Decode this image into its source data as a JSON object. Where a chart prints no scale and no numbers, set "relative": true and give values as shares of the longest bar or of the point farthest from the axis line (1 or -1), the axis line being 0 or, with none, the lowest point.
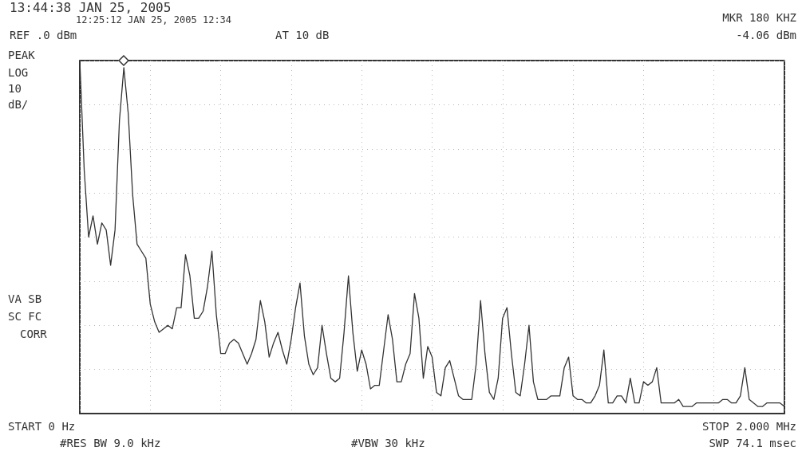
{
  "chart_data": {
    "type": "line",
    "title": "13:44:38 JAN 25, 2005",
    "annotations": [
      "12:25:12 JAN 25, 2005 12:34",
      "REF .0 dBm",
      "AT 10 dB",
      "MKR 180 KHZ",
      "-4.06 dBm",
      "PEAK",
      "LOG",
      "10",
      "dB/",
      "VA SB",
      "SC FC",
      "CORR",
      "START 0 Hz",
      "STOP 2.000 MHz",
      "#RES BW 9.0 kHz",
      "#VBW 30 kHz",
      "SWP 74.1 msec"
    ],
    "categories": [
      null,
      null,
      null,
      null,
      null,
      null,
      null,
      null,
      null,
      null,
      null,
      null,
      null,
      null,
      null,
      null,
      null,
      null,
      null,
      null,
      null,
      null,
      null,
      null,
      null,
      null,
      null,
      null,
      null,
      null,
      null,
      null,
      null,
      null,
      null,
      null,
      null,
      null,
      null,
      null,
      null,
      null,
      null,
      null,
      null,
      null,
      null,
      null,
      null,
      null,
      null,
      null,
      null,
      null,
      null,
      null,
      null,
      null,
      null,
      null,
      null,
      null,
      null,
      null,
      null,
      null,
      null,
      null,
      null,
      null,
      null,
      null,
      null,
      null,
      null,
      null,
      null,
      null,
      null,
      null,
      null,
      null,
      null,
      null,
      null,
      null,
      null,
      null,
      null,
      null,
      null,
      null,
      null,
      null,
      null,
      null,
      null,
      null,
      null,
      null,
      null,
      null,
      null,
      null,
      null,
      null,
      null,
      null,
      null,
      null,
      null,
      null,
      null,
      null,
      null,
      null,
      null,
      null,
      null,
      null,
      null,
      null,
      null,
      null,
      null,
      null,
      null,
      null,
      null,
      null,
      null,
      null,
      null,
      null,
      null,
      null,
      null,
      null,
      null,
      null,
      null,
      null,
      null,
      null,
      null,
      null,
      null,
      null,
      null,
      null,
      null,
      null,
      null,
      null,
      null,
      null,
      null,
      null,
      null,
      null,
      null
    ],
    "series": [
      {
        "color": "#333333",
        "values": [
          1,
          0.69,
          0.5,
          0.56,
          0.48,
          0.54,
          0.52,
          0.42,
          0.52,
          0.83,
          0.98,
          0.85,
          0.62,
          0.48,
          0.46,
          0.44,
          0.31,
          0.26,
          0.23,
          0.24,
          0.25,
          0.24,
          0.3,
          0.3,
          0.45,
          0.39,
          0.27,
          0.27,
          0.29,
          0.36,
          0.46,
          0.28,
          0.17,
          0.17,
          0.2,
          0.21,
          0.2,
          0.17,
          0.14,
          0.17,
          0.21,
          0.32,
          0.26,
          0.16,
          0.2,
          0.23,
          0.18,
          0.14,
          0.21,
          0.3,
          0.37,
          0.22,
          0.14,
          0.11,
          0.13,
          0.25,
          0.17,
          0.1,
          0.09,
          0.1,
          0.23,
          0.39,
          0.23,
          0.12,
          0.18,
          0.14,
          0.07,
          0.08,
          0.08,
          0.18,
          0.28,
          0.21,
          0.09,
          0.09,
          0.14,
          0.17,
          0.34,
          0.27,
          0.1,
          0.19,
          0.16,
          0.06,
          0.05,
          0.13,
          0.15,
          0.1,
          0.05,
          0.04,
          0.04,
          0.04,
          0.14,
          0.32,
          0.17,
          0.06,
          0.04,
          0.1,
          0.27,
          0.3,
          0.17,
          0.06,
          0.05,
          0.14,
          0.25,
          0.09,
          0.04,
          0.04,
          0.04,
          0.05,
          0.05,
          0.05,
          0.13,
          0.16,
          0.05,
          0.04,
          0.04,
          0.03,
          0.03,
          0.05,
          0.08,
          0.18,
          0.03,
          0.03,
          0.05,
          0.05,
          0.03,
          0.1,
          0.03,
          0.03,
          0.09,
          0.08,
          0.09,
          0.13,
          0.03,
          0.03,
          0.03,
          0.03,
          0.04,
          0.02,
          0.02,
          0.02,
          0.03,
          0.03,
          0.03,
          0.03,
          0.03,
          0.03,
          0.04,
          0.04,
          0.03,
          0.03,
          0.05,
          0.13,
          0.04,
          0.03,
          0.02,
          0.02,
          0.03,
          0.03,
          0.03,
          0.03,
          0.02
        ]
      }
    ],
    "relative": true,
    "grid": true,
    "marker": "none",
    "line_style": "solid"
  }
}
